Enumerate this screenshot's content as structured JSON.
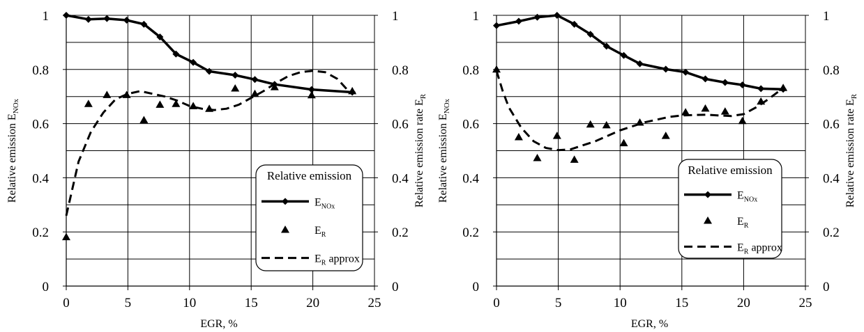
{
  "chart_data": [
    {
      "type": "line",
      "x_axis": {
        "label": "EGR, %",
        "min": 0,
        "max": 25,
        "ticks": [
          0,
          5,
          10,
          15,
          20,
          25
        ],
        "tick_labels": [
          "0",
          "5",
          "10",
          "15",
          "20",
          "25"
        ]
      },
      "y_axis_left": {
        "label_main": "Relative emission E",
        "label_sub": "NOx",
        "min": 0,
        "max": 1,
        "ticks": [
          0,
          0.2,
          0.4,
          0.6,
          0.8,
          1
        ],
        "tick_labels": [
          "0",
          "0.2",
          "0.4",
          "0.6",
          "0.8",
          "1"
        ]
      },
      "y_axis_right": {
        "label_main": "Relative emission rate E",
        "label_sub": "R",
        "min": 0,
        "max": 1,
        "ticks": [
          0,
          0.2,
          0.4,
          0.6,
          0.8,
          1
        ],
        "tick_labels": [
          "0",
          "0.2",
          "0.4",
          "0.6",
          "0.8",
          "1"
        ]
      },
      "grid": true,
      "legend": {
        "title": "Relative emission",
        "placement": "right-middle",
        "entries": [
          {
            "main": "E",
            "sub": "NOx",
            "suffix": "",
            "style": "line-diamond"
          },
          {
            "main": "E",
            "sub": "R",
            "suffix": "",
            "style": "triangle"
          },
          {
            "main": "E",
            "sub": "R",
            "suffix": " approx",
            "style": "dashed"
          }
        ]
      },
      "series": [
        {
          "key": "enox",
          "style": "line-diamond",
          "color": "#000000",
          "x": [
            0,
            1.8,
            3.3,
            4.9,
            6.3,
            7.6,
            8.9,
            10.3,
            11.6,
            13.7,
            15.3,
            16.9,
            19.9,
            23.2
          ],
          "y": [
            1.0,
            0.985,
            0.988,
            0.982,
            0.967,
            0.92,
            0.857,
            0.826,
            0.793,
            0.779,
            0.763,
            0.745,
            0.726,
            0.716
          ]
        },
        {
          "key": "er",
          "style": "triangle",
          "color": "#000000",
          "x": [
            0,
            1.8,
            3.3,
            4.9,
            6.3,
            7.6,
            8.9,
            10.3,
            11.6,
            13.7,
            15.3,
            16.9,
            19.9,
            23.2
          ],
          "y": [
            0.181,
            0.673,
            0.706,
            0.706,
            0.613,
            0.67,
            0.673,
            0.665,
            0.655,
            0.73,
            0.71,
            0.735,
            0.705,
            0.72
          ]
        },
        {
          "key": "er_approx",
          "style": "dashed",
          "color": "#000000",
          "x": [
            0,
            1,
            2,
            3,
            4,
            5,
            6,
            7,
            8,
            9,
            10,
            11,
            12,
            13,
            14,
            15,
            16,
            17,
            18,
            19,
            20,
            21,
            22,
            23
          ],
          "y": [
            0.26,
            0.46,
            0.57,
            0.64,
            0.69,
            0.71,
            0.72,
            0.71,
            0.7,
            0.685,
            0.665,
            0.655,
            0.65,
            0.655,
            0.67,
            0.695,
            0.72,
            0.75,
            0.775,
            0.79,
            0.795,
            0.79,
            0.765,
            0.715
          ]
        }
      ]
    },
    {
      "type": "line",
      "x_axis": {
        "label": "EGR, %",
        "min": 0,
        "max": 25,
        "ticks": [
          0,
          5,
          10,
          15,
          20,
          25
        ],
        "tick_labels": [
          "0",
          "5",
          "10",
          "15",
          "20",
          "25"
        ]
      },
      "y_axis_left": {
        "label_main": "Relative emission E",
        "label_sub": "NOx",
        "min": 0,
        "max": 1,
        "ticks": [
          0,
          0.2,
          0.4,
          0.6,
          0.8,
          1
        ],
        "tick_labels": [
          "0",
          "0.2",
          "0.4",
          "0.6",
          "0.8",
          "1"
        ]
      },
      "y_axis_right": {
        "label_main": "Relative emission rate E",
        "label_sub": "R",
        "min": 0,
        "max": 1,
        "ticks": [
          0,
          0.2,
          0.4,
          0.6,
          0.8,
          1
        ],
        "tick_labels": [
          "0",
          "0.2",
          "0.4",
          "0.6",
          "0.8",
          "1"
        ]
      },
      "grid": true,
      "legend": {
        "title": "Relative emission",
        "placement": "right-middle",
        "entries": [
          {
            "main": "E",
            "sub": "NOx",
            "suffix": "",
            "style": "line-diamond"
          },
          {
            "main": "E",
            "sub": "R",
            "suffix": "",
            "style": "triangle"
          },
          {
            "main": "E",
            "sub": "R",
            "suffix": " approx",
            "style": "dashed"
          }
        ]
      },
      "series": [
        {
          "key": "enox",
          "style": "line-diamond",
          "color": "#000000",
          "x": [
            0,
            1.8,
            3.3,
            4.9,
            6.3,
            7.6,
            8.9,
            10.3,
            11.6,
            13.7,
            15.3,
            16.9,
            18.5,
            19.9,
            21.4,
            23.2
          ],
          "y": [
            0.962,
            0.978,
            0.993,
            1.0,
            0.967,
            0.93,
            0.886,
            0.852,
            0.821,
            0.801,
            0.79,
            0.765,
            0.752,
            0.743,
            0.729,
            0.727
          ]
        },
        {
          "key": "er",
          "style": "triangle",
          "color": "#000000",
          "x": [
            0,
            1.8,
            3.3,
            4.9,
            6.3,
            7.6,
            8.9,
            10.3,
            11.6,
            13.7,
            15.3,
            16.9,
            18.5,
            19.9,
            21.4,
            23.2
          ],
          "y": [
            0.8,
            0.55,
            0.473,
            0.555,
            0.467,
            0.597,
            0.594,
            0.528,
            0.604,
            0.555,
            0.642,
            0.656,
            0.645,
            0.61,
            0.682,
            0.732
          ]
        },
        {
          "key": "er_approx",
          "style": "dashed",
          "color": "#000000",
          "x": [
            0,
            0.5,
            1,
            2,
            3,
            4,
            5,
            6,
            7,
            8,
            9,
            10,
            11,
            12,
            13,
            14,
            15,
            16,
            17,
            18,
            19,
            20,
            21,
            22,
            23
          ],
          "y": [
            0.795,
            0.72,
            0.66,
            0.585,
            0.535,
            0.51,
            0.502,
            0.505,
            0.52,
            0.535,
            0.555,
            0.575,
            0.59,
            0.605,
            0.615,
            0.625,
            0.63,
            0.632,
            0.633,
            0.63,
            0.628,
            0.635,
            0.66,
            0.69,
            0.725
          ]
        }
      ]
    }
  ]
}
